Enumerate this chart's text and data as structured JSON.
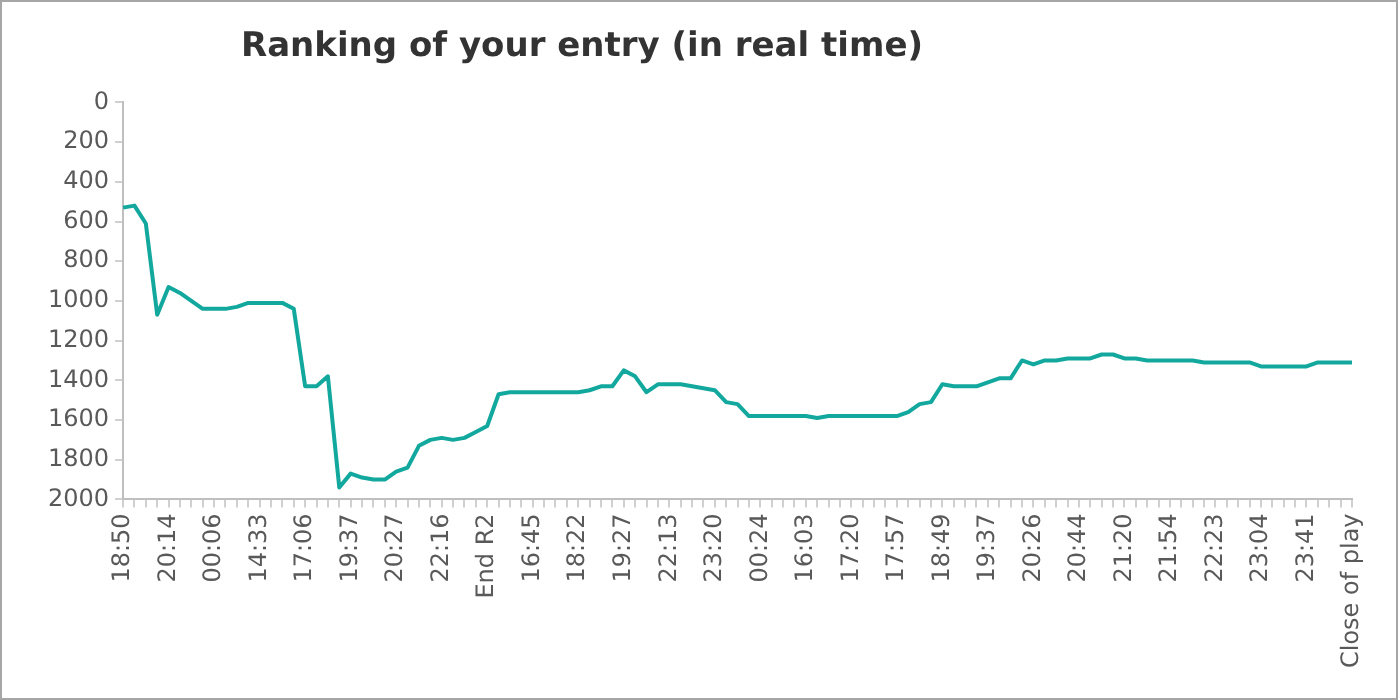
{
  "chart_data": {
    "type": "line",
    "title": "Ranking of your entry (in real time)",
    "categories": [
      "18:50",
      null,
      null,
      null,
      "20:14",
      null,
      null,
      null,
      "00:06",
      null,
      null,
      null,
      "14:33",
      null,
      null,
      null,
      "17:06",
      null,
      null,
      null,
      "19:37",
      null,
      null,
      null,
      "20:27",
      null,
      null,
      null,
      "22:16",
      null,
      null,
      null,
      "End R2",
      null,
      null,
      null,
      "16:45",
      null,
      null,
      null,
      "18:22",
      null,
      null,
      null,
      "19:27",
      null,
      null,
      null,
      "22:13",
      null,
      null,
      null,
      "23:20",
      null,
      null,
      null,
      "00:24",
      null,
      null,
      null,
      "16:03",
      null,
      null,
      null,
      "17:20",
      null,
      null,
      null,
      "17:57",
      null,
      null,
      null,
      "18:49",
      null,
      null,
      null,
      "19:37",
      null,
      null,
      null,
      "20:26",
      null,
      null,
      null,
      "20:44",
      null,
      null,
      null,
      "21:20",
      null,
      null,
      null,
      "21:54",
      null,
      null,
      null,
      "22:23",
      null,
      null,
      null,
      "23:04",
      null,
      null,
      null,
      "23:41",
      null,
      null,
      null,
      "Close of play"
    ],
    "series": [
      {
        "color": "#13a89e",
        "values": [
          530,
          520,
          610,
          1070,
          930,
          960,
          1000,
          1040,
          1040,
          1040,
          1030,
          1010,
          1010,
          1010,
          1010,
          1040,
          1430,
          1430,
          1380,
          1940,
          1870,
          1890,
          1900,
          1900,
          1860,
          1840,
          1730,
          1700,
          1690,
          1700,
          1690,
          1660,
          1630,
          1470,
          1460,
          1460,
          1460,
          1460,
          1460,
          1460,
          1460,
          1450,
          1430,
          1430,
          1350,
          1380,
          1460,
          1420,
          1420,
          1420,
          1430,
          1440,
          1450,
          1510,
          1520,
          1580,
          1580,
          1580,
          1580,
          1580,
          1580,
          1590,
          1580,
          1580,
          1580,
          1580,
          1580,
          1580,
          1580,
          1560,
          1520,
          1510,
          1420,
          1430,
          1430,
          1430,
          1410,
          1390,
          1390,
          1300,
          1320,
          1300,
          1300,
          1290,
          1290,
          1290,
          1270,
          1270,
          1290,
          1290,
          1300,
          1300,
          1300,
          1300,
          1300,
          1310,
          1310,
          1310,
          1310,
          1310,
          1330,
          1330,
          1330,
          1330,
          1330,
          1310,
          1310,
          1310,
          1310
        ]
      }
    ],
    "ylim": [
      2000,
      0
    ],
    "yticks": [
      0,
      200,
      400,
      600,
      800,
      1000,
      1200,
      1400,
      1600,
      1800,
      2000
    ],
    "grid": false,
    "legend": false,
    "marker": "none",
    "line_style": "solid"
  }
}
